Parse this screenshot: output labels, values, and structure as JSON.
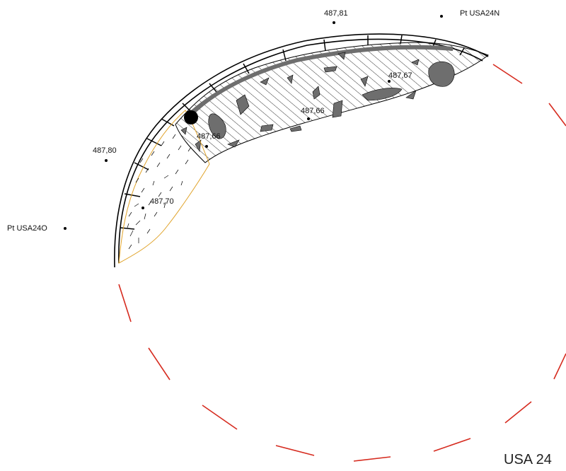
{
  "drawing": {
    "title": "USA 24",
    "colors": {
      "excavation_limit": "#d62b1f",
      "outline": "#000000",
      "stones": "#6e6e6e",
      "hatched_zone_border": "#e0a32a"
    },
    "altitudes": [
      {
        "id": "alt-48781",
        "label": "487,81"
      },
      {
        "id": "alt-48780",
        "label": "487,80"
      },
      {
        "id": "alt-48770",
        "label": "487,70"
      },
      {
        "id": "alt-48766a",
        "label": "487,66"
      },
      {
        "id": "alt-48766b",
        "label": "487,66"
      },
      {
        "id": "alt-48767",
        "label": "487,67"
      }
    ],
    "points": [
      {
        "id": "pt-usa24n",
        "label": "Pt USA24N"
      },
      {
        "id": "pt-usa24o",
        "label": "Pt USA24O"
      }
    ]
  }
}
